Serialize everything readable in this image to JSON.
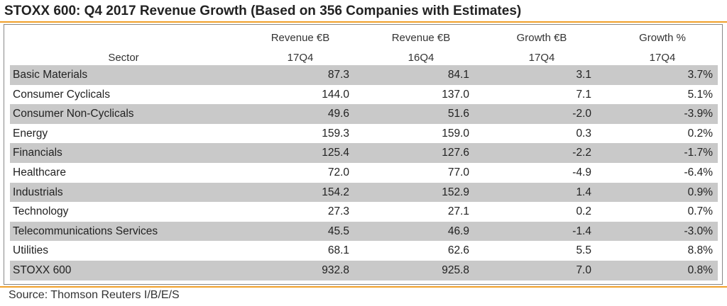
{
  "title": "STOXX 600: Q4 2017 Revenue Growth (Based on 356 Companies with Estimates)",
  "source": "Source: Thomson Reuters I/B/E/S",
  "colors": {
    "accent_rule": "#f0a02a",
    "row_shade": "#c9c9c9"
  },
  "chart_data": {
    "type": "table",
    "title": "STOXX 600: Q4 2017 Revenue Growth (Based on 356 Companies with Estimates)",
    "columns": [
      {
        "line1": "",
        "line2": "Sector"
      },
      {
        "line1": "Revenue €B",
        "line2": "17Q4"
      },
      {
        "line1": "Revenue €B",
        "line2": "16Q4"
      },
      {
        "line1": "Growth €B",
        "line2": "17Q4"
      },
      {
        "line1": "Growth %",
        "line2": "17Q4"
      }
    ],
    "rows": [
      [
        "Basic Materials",
        "87.3",
        "84.1",
        "3.1",
        "3.7%"
      ],
      [
        "Consumer Cyclicals",
        "144.0",
        "137.0",
        "7.1",
        "5.1%"
      ],
      [
        "Consumer Non-Cyclicals",
        "49.6",
        "51.6",
        "-2.0",
        "-3.9%"
      ],
      [
        "Energy",
        "159.3",
        "159.0",
        "0.3",
        "0.2%"
      ],
      [
        "Financials",
        "125.4",
        "127.6",
        "-2.2",
        "-1.7%"
      ],
      [
        "Healthcare",
        "72.0",
        "77.0",
        "-4.9",
        "-6.4%"
      ],
      [
        "Industrials",
        "154.2",
        "152.9",
        "1.4",
        "0.9%"
      ],
      [
        "Technology",
        "27.3",
        "27.1",
        "0.2",
        "0.7%"
      ],
      [
        "Telecommunications Services",
        "45.5",
        "46.9",
        "-1.4",
        "-3.0%"
      ],
      [
        "Utilities",
        "68.1",
        "62.6",
        "5.5",
        "8.8%"
      ],
      [
        "STOXX 600",
        "932.8",
        "925.8",
        "7.0",
        "0.8%"
      ]
    ]
  }
}
